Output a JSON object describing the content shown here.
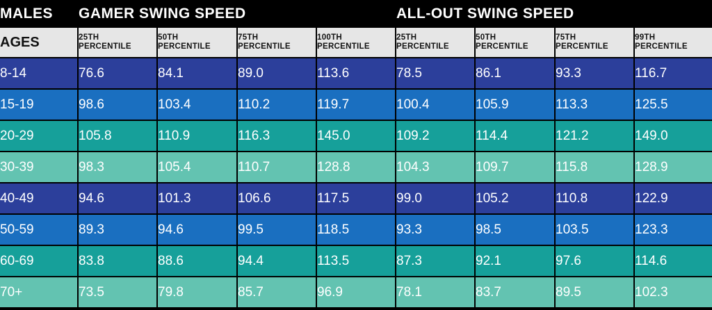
{
  "chart_data": {
    "type": "table",
    "corner_label": "MALES",
    "row_header_label": "AGES",
    "groups": [
      {
        "title": "GAMER SWING SPEED",
        "columns": [
          {
            "line1": "25TH",
            "line2": "PERCENTILE"
          },
          {
            "line1": "50TH",
            "line2": "PERCENTILE"
          },
          {
            "line1": "75TH",
            "line2": "PERCENTILE"
          },
          {
            "line1": "100TH",
            "line2": "PERCENTILE"
          }
        ]
      },
      {
        "title": "ALL-OUT SWING SPEED",
        "columns": [
          {
            "line1": "25TH",
            "line2": "PERCENTILE"
          },
          {
            "line1": "50TH",
            "line2": "PERCENTILE"
          },
          {
            "line1": "75TH",
            "line2": "PERCENTILE"
          },
          {
            "line1": "99TH",
            "line2": "PERCENTILE"
          }
        ]
      }
    ],
    "rows": [
      {
        "age": "8-14",
        "values": [
          "76.6",
          "84.1",
          "89.0",
          "113.6",
          "78.5",
          "86.1",
          "93.3",
          "116.7"
        ]
      },
      {
        "age": "15-19",
        "values": [
          "98.6",
          "103.4",
          "110.2",
          "119.7",
          "100.4",
          "105.9",
          "113.3",
          "125.5"
        ]
      },
      {
        "age": "20-29",
        "values": [
          "105.8",
          "110.9",
          "116.3",
          "145.0",
          "109.2",
          "114.4",
          "121.2",
          "149.0"
        ]
      },
      {
        "age": "30-39",
        "values": [
          "98.3",
          "105.4",
          "110.7",
          "128.8",
          "104.3",
          "109.7",
          "115.8",
          "128.9"
        ]
      },
      {
        "age": "40-49",
        "values": [
          "94.6",
          "101.3",
          "106.6",
          "117.5",
          "99.0",
          "105.2",
          "110.8",
          "122.9"
        ]
      },
      {
        "age": "50-59",
        "values": [
          "89.3",
          "94.6",
          "99.5",
          "118.5",
          "93.3",
          "98.5",
          "103.5",
          "123.3"
        ]
      },
      {
        "age": "60-69",
        "values": [
          "83.8",
          "88.6",
          "94.4",
          "113.5",
          "87.3",
          "92.1",
          "97.6",
          "114.6"
        ]
      },
      {
        "age": "70+",
        "values": [
          "73.5",
          "79.8",
          "85.7",
          "96.9",
          "78.1",
          "83.7",
          "89.5",
          "102.3"
        ]
      }
    ],
    "row_colors": [
      "#2c3f9b",
      "#1a6fc0",
      "#16a09a",
      "#63c3b1"
    ],
    "row_text_colors": [
      "#ffffff",
      "#ffffff",
      "#ffffff",
      "#ffffff"
    ],
    "header_bg": "#000000",
    "subheader_bg": "#e6e6e6"
  }
}
